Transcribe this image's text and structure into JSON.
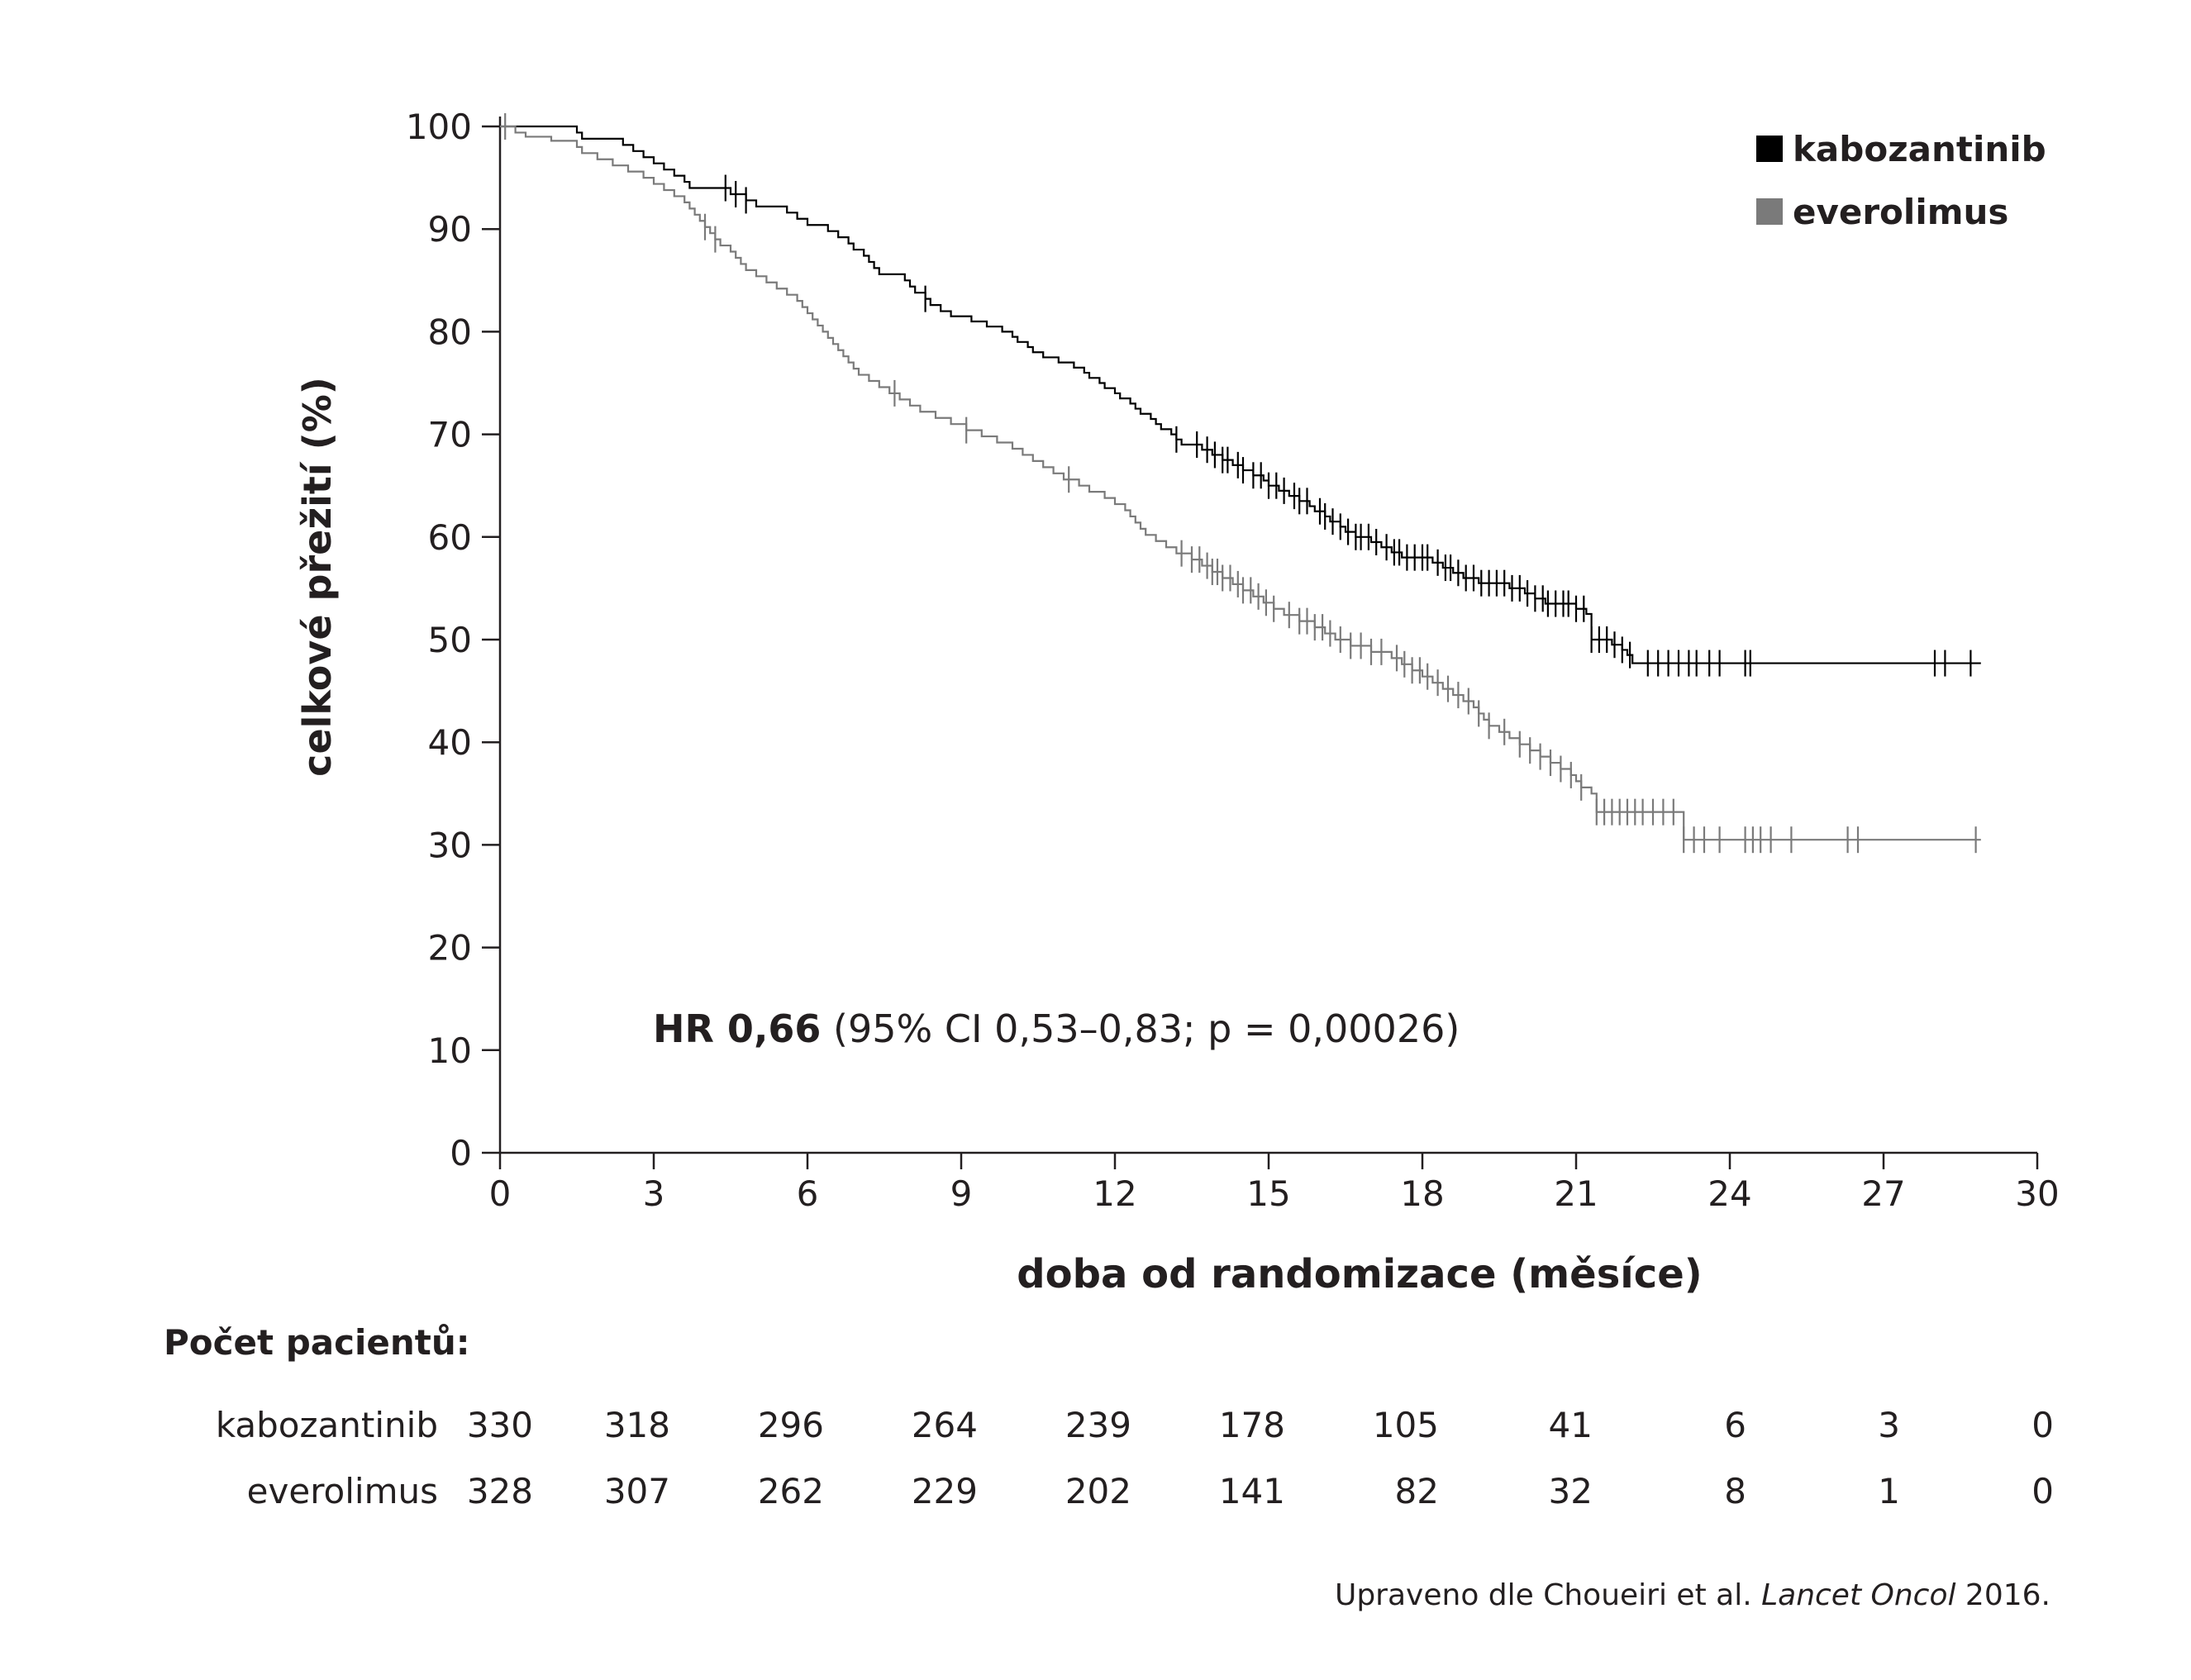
{
  "chart_data": {
    "type": "line",
    "subtype": "kaplan-meier",
    "xlabel": "doba od randomizace (měsíce)",
    "ylabel": "celkové přežití (%)",
    "xlim": [
      0,
      30
    ],
    "ylim": [
      0,
      100
    ],
    "xticks": [
      "0",
      "3",
      "6",
      "9",
      "12",
      "15",
      "18",
      "21",
      "24",
      "27",
      "30"
    ],
    "yticks": [
      "0",
      "10",
      "20",
      "30",
      "40",
      "50",
      "60",
      "70",
      "80",
      "90",
      "100"
    ],
    "grid": false,
    "legend_position": "top-right",
    "series": [
      {
        "name": "kabozantinib",
        "color": "#000000",
        "steps": [
          [
            0,
            100
          ],
          [
            1.5,
            99.4
          ],
          [
            1.6,
            98.8
          ],
          [
            2.4,
            98.2
          ],
          [
            2.6,
            97.6
          ],
          [
            2.8,
            97.0
          ],
          [
            3.0,
            96.4
          ],
          [
            3.2,
            95.8
          ],
          [
            3.4,
            95.2
          ],
          [
            3.6,
            94.6
          ],
          [
            3.7,
            94.0
          ],
          [
            4.5,
            93.4
          ],
          [
            4.8,
            92.8
          ],
          [
            5.0,
            92.2
          ],
          [
            5.6,
            91.6
          ],
          [
            5.8,
            91.0
          ],
          [
            6.0,
            90.4
          ],
          [
            6.4,
            89.8
          ],
          [
            6.6,
            89.2
          ],
          [
            6.8,
            88.6
          ],
          [
            6.9,
            88.0
          ],
          [
            7.1,
            87.4
          ],
          [
            7.2,
            86.8
          ],
          [
            7.3,
            86.2
          ],
          [
            7.4,
            85.6
          ],
          [
            7.9,
            85.0
          ],
          [
            8.0,
            84.4
          ],
          [
            8.1,
            83.8
          ],
          [
            8.3,
            83.2
          ],
          [
            8.4,
            82.6
          ],
          [
            8.6,
            82.0
          ],
          [
            8.8,
            81.5
          ],
          [
            9.2,
            81.0
          ],
          [
            9.5,
            80.5
          ],
          [
            9.8,
            80.0
          ],
          [
            10.0,
            79.5
          ],
          [
            10.1,
            79.0
          ],
          [
            10.3,
            78.5
          ],
          [
            10.4,
            78.0
          ],
          [
            10.6,
            77.5
          ],
          [
            10.9,
            77.0
          ],
          [
            11.2,
            76.5
          ],
          [
            11.4,
            76.0
          ],
          [
            11.5,
            75.5
          ],
          [
            11.7,
            75.0
          ],
          [
            11.8,
            74.5
          ],
          [
            12.0,
            74.0
          ],
          [
            12.1,
            73.5
          ],
          [
            12.3,
            73.0
          ],
          [
            12.4,
            72.5
          ],
          [
            12.5,
            72.0
          ],
          [
            12.7,
            71.5
          ],
          [
            12.8,
            71.0
          ],
          [
            12.9,
            70.5
          ],
          [
            13.1,
            70.0
          ],
          [
            13.2,
            69.5
          ],
          [
            13.3,
            69.0
          ],
          [
            13.7,
            68.5
          ],
          [
            13.9,
            68.0
          ],
          [
            14.1,
            67.5
          ],
          [
            14.3,
            67.0
          ],
          [
            14.5,
            66.5
          ],
          [
            14.7,
            66.0
          ],
          [
            14.9,
            65.5
          ],
          [
            15.0,
            65.0
          ],
          [
            15.2,
            64.5
          ],
          [
            15.4,
            64.0
          ],
          [
            15.6,
            63.5
          ],
          [
            15.8,
            63.0
          ],
          [
            15.9,
            62.5
          ],
          [
            16.1,
            62.0
          ],
          [
            16.2,
            61.5
          ],
          [
            16.4,
            61.0
          ],
          [
            16.5,
            60.5
          ],
          [
            16.7,
            60.0
          ],
          [
            17.0,
            59.5
          ],
          [
            17.2,
            59.0
          ],
          [
            17.4,
            58.5
          ],
          [
            17.6,
            58.0
          ],
          [
            18.2,
            57.5
          ],
          [
            18.4,
            57.0
          ],
          [
            18.6,
            56.5
          ],
          [
            18.8,
            56.0
          ],
          [
            19.1,
            55.5
          ],
          [
            19.7,
            55.0
          ],
          [
            20.0,
            54.5
          ],
          [
            20.2,
            54.0
          ],
          [
            20.4,
            53.5
          ],
          [
            21.0,
            53.0
          ],
          [
            21.2,
            52.5
          ],
          [
            21.3,
            50.0
          ],
          [
            21.7,
            49.5
          ],
          [
            21.9,
            49.0
          ],
          [
            22.0,
            48.5
          ],
          [
            22.1,
            47.7
          ],
          [
            28.9,
            47.7
          ]
        ],
        "censor_x": [
          4.4,
          4.6,
          4.8,
          8.3,
          13.2,
          13.6,
          13.8,
          13.95,
          14.1,
          14.2,
          14.4,
          14.5,
          14.7,
          14.85,
          15.0,
          15.15,
          15.3,
          15.5,
          15.6,
          15.75,
          16.0,
          16.1,
          16.25,
          16.4,
          16.55,
          16.7,
          16.8,
          16.95,
          17.1,
          17.3,
          17.45,
          17.55,
          17.7,
          17.85,
          18.0,
          18.1,
          18.3,
          18.45,
          18.55,
          18.7,
          18.85,
          19.0,
          19.15,
          19.3,
          19.45,
          19.6,
          19.75,
          19.9,
          20.05,
          20.2,
          20.35,
          20.45,
          20.6,
          20.75,
          20.85,
          21.0,
          21.15,
          21.3,
          21.45,
          21.6,
          21.75,
          21.9,
          22.05,
          22.4,
          22.6,
          22.8,
          23.0,
          23.2,
          23.35,
          23.6,
          23.8,
          24.3,
          24.4,
          28.0,
          28.2,
          28.7
        ]
      },
      {
        "name": "everolimus",
        "color": "#7a7a7a",
        "steps": [
          [
            0,
            100
          ],
          [
            0.3,
            99.4
          ],
          [
            0.5,
            99.0
          ],
          [
            1.0,
            98.6
          ],
          [
            1.5,
            98.0
          ],
          [
            1.6,
            97.4
          ],
          [
            1.9,
            96.8
          ],
          [
            2.2,
            96.2
          ],
          [
            2.5,
            95.6
          ],
          [
            2.8,
            95.0
          ],
          [
            3.0,
            94.4
          ],
          [
            3.2,
            93.8
          ],
          [
            3.4,
            93.2
          ],
          [
            3.6,
            92.6
          ],
          [
            3.7,
            92.0
          ],
          [
            3.8,
            91.4
          ],
          [
            3.9,
            90.8
          ],
          [
            4.0,
            90.2
          ],
          [
            4.1,
            89.6
          ],
          [
            4.2,
            89.0
          ],
          [
            4.3,
            88.4
          ],
          [
            4.5,
            87.8
          ],
          [
            4.6,
            87.2
          ],
          [
            4.7,
            86.6
          ],
          [
            4.8,
            86.0
          ],
          [
            5.0,
            85.4
          ],
          [
            5.2,
            84.8
          ],
          [
            5.4,
            84.2
          ],
          [
            5.6,
            83.6
          ],
          [
            5.8,
            83.0
          ],
          [
            5.9,
            82.4
          ],
          [
            6.0,
            81.8
          ],
          [
            6.1,
            81.2
          ],
          [
            6.2,
            80.6
          ],
          [
            6.3,
            80.0
          ],
          [
            6.4,
            79.4
          ],
          [
            6.5,
            78.8
          ],
          [
            6.6,
            78.2
          ],
          [
            6.7,
            77.6
          ],
          [
            6.8,
            77.0
          ],
          [
            6.9,
            76.4
          ],
          [
            7.0,
            75.8
          ],
          [
            7.2,
            75.2
          ],
          [
            7.4,
            74.6
          ],
          [
            7.6,
            74.0
          ],
          [
            7.8,
            73.4
          ],
          [
            8.0,
            72.8
          ],
          [
            8.2,
            72.2
          ],
          [
            8.5,
            71.6
          ],
          [
            8.8,
            71.0
          ],
          [
            9.1,
            70.4
          ],
          [
            9.4,
            69.8
          ],
          [
            9.7,
            69.2
          ],
          [
            10.0,
            68.6
          ],
          [
            10.2,
            68.0
          ],
          [
            10.4,
            67.4
          ],
          [
            10.6,
            66.8
          ],
          [
            10.8,
            66.2
          ],
          [
            11.0,
            65.6
          ],
          [
            11.3,
            65.0
          ],
          [
            11.5,
            64.4
          ],
          [
            11.8,
            63.8
          ],
          [
            12.0,
            63.2
          ],
          [
            12.2,
            62.6
          ],
          [
            12.3,
            62.0
          ],
          [
            12.4,
            61.4
          ],
          [
            12.5,
            60.8
          ],
          [
            12.6,
            60.2
          ],
          [
            12.8,
            59.6
          ],
          [
            13.0,
            59.0
          ],
          [
            13.2,
            58.4
          ],
          [
            13.5,
            57.8
          ],
          [
            13.7,
            57.2
          ],
          [
            13.9,
            56.6
          ],
          [
            14.1,
            56.0
          ],
          [
            14.3,
            55.4
          ],
          [
            14.5,
            54.8
          ],
          [
            14.7,
            54.2
          ],
          [
            14.9,
            53.6
          ],
          [
            15.1,
            53.0
          ],
          [
            15.3,
            52.4
          ],
          [
            15.6,
            51.8
          ],
          [
            15.9,
            51.2
          ],
          [
            16.1,
            50.6
          ],
          [
            16.3,
            50.0
          ],
          [
            16.6,
            49.4
          ],
          [
            17.0,
            48.8
          ],
          [
            17.4,
            48.2
          ],
          [
            17.6,
            47.6
          ],
          [
            17.8,
            47.0
          ],
          [
            18.0,
            46.4
          ],
          [
            18.2,
            45.8
          ],
          [
            18.4,
            45.2
          ],
          [
            18.6,
            44.6
          ],
          [
            18.8,
            44.0
          ],
          [
            19.0,
            43.4
          ],
          [
            19.1,
            42.8
          ],
          [
            19.2,
            42.2
          ],
          [
            19.3,
            41.6
          ],
          [
            19.5,
            41.0
          ],
          [
            19.7,
            40.4
          ],
          [
            19.9,
            39.8
          ],
          [
            20.1,
            39.2
          ],
          [
            20.3,
            38.6
          ],
          [
            20.5,
            38.0
          ],
          [
            20.7,
            37.4
          ],
          [
            20.9,
            36.8
          ],
          [
            21.0,
            36.2
          ],
          [
            21.1,
            35.6
          ],
          [
            21.3,
            35.0
          ],
          [
            21.4,
            33.2
          ],
          [
            22.5,
            33.2
          ],
          [
            23.1,
            30.5
          ],
          [
            28.9,
            30.5
          ]
        ],
        "censor_x": [
          0.1,
          4.0,
          4.2,
          7.7,
          9.1,
          11.1,
          13.3,
          13.5,
          13.65,
          13.8,
          13.9,
          14.0,
          14.1,
          14.25,
          14.4,
          14.5,
          14.65,
          14.8,
          14.95,
          15.1,
          15.4,
          15.6,
          15.75,
          15.9,
          16.05,
          16.2,
          16.4,
          16.6,
          16.8,
          17.0,
          17.2,
          17.5,
          17.65,
          17.8,
          17.95,
          18.1,
          18.3,
          18.5,
          18.7,
          18.9,
          19.1,
          19.3,
          19.6,
          19.9,
          20.1,
          20.3,
          20.5,
          20.7,
          20.9,
          21.1,
          21.4,
          21.55,
          21.7,
          21.85,
          22.0,
          22.15,
          22.3,
          22.5,
          22.7,
          22.9,
          23.1,
          23.3,
          23.5,
          23.8,
          24.3,
          24.45,
          24.6,
          24.8,
          25.2,
          26.3,
          26.5,
          28.8
        ]
      }
    ],
    "annotation": {
      "bold": "HR 0,66",
      "rest": " (95% CI 0,53–0,83; p = 0,00026)"
    },
    "risk_table": {
      "title": "Počet pacientů:",
      "rows": [
        {
          "name": "kabozantinib",
          "values": [
            "330",
            "318",
            "296",
            "264",
            "239",
            "178",
            "105",
            "41",
            "6",
            "3",
            "0"
          ]
        },
        {
          "name": "everolimus",
          "values": [
            "328",
            "307",
            "262",
            "229",
            "202",
            "141",
            "82",
            "32",
            "8",
            "1",
            "0"
          ]
        }
      ]
    },
    "source": {
      "text": "Upraveno dle Choueiri et al. ",
      "journal": "Lancet Oncol",
      "year": " 2016."
    }
  }
}
